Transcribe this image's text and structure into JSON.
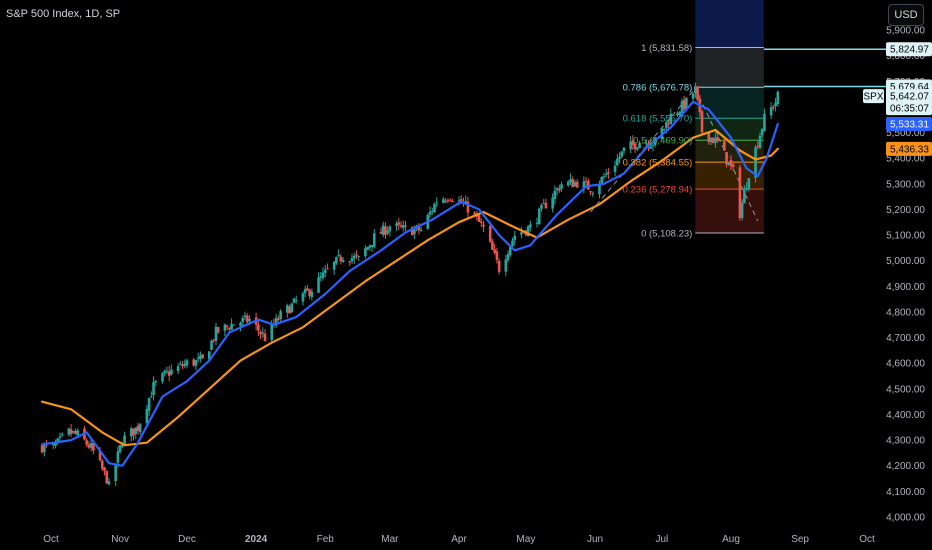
{
  "header": {
    "title": "S&P 500 Index, 1D, SP",
    "currency_button": "USD"
  },
  "colors": {
    "up": "#26a69a",
    "down": "#ef5350",
    "ma_fast": "#2962ff",
    "ma_slow": "#f7931a",
    "fib_zone_top": "#0b1a4a",
    "fib_cyan": "#7fdbe4",
    "label_bg_white": "#dff3f6",
    "sma_blue": "#2962ff",
    "sma_orange": "#f7931a"
  },
  "chart_data": {
    "type": "candlestick",
    "title": "S&P 500 Index, 1D, SP",
    "ylim": [
      3960,
      5980
    ],
    "y_ticks": [
      "5,900.00",
      "5,800.00",
      "5,700.00",
      "5,600.00",
      "5,500.00",
      "5,400.00",
      "5,300.00",
      "5,200.00",
      "5,100.00",
      "5,000.00",
      "4,900.00",
      "4,800.00",
      "4,700.00",
      "4,600.00",
      "4,500.00",
      "4,400.00",
      "4,300.00",
      "4,200.00",
      "4,100.00",
      "4,000.00"
    ],
    "x_labels": [
      "Oct",
      "Nov",
      "Dec",
      "2024",
      "Feb",
      "Mar",
      "Apr",
      "May",
      "Jun",
      "Jul",
      "Aug",
      "Sep",
      "Oct"
    ],
    "close_series": [
      {
        "d": "2023-09-27",
        "v": 4275
      },
      {
        "d": "2023-10-02",
        "v": 4270
      },
      {
        "d": "2023-10-09",
        "v": 4330
      },
      {
        "d": "2023-10-13",
        "v": 4320
      },
      {
        "d": "2023-10-19",
        "v": 4270
      },
      {
        "d": "2023-10-26",
        "v": 4150
      },
      {
        "d": "2023-10-27",
        "v": 4117
      },
      {
        "d": "2023-11-02",
        "v": 4300
      },
      {
        "d": "2023-11-09",
        "v": 4350
      },
      {
        "d": "2023-11-16",
        "v": 4510
      },
      {
        "d": "2023-11-22",
        "v": 4560
      },
      {
        "d": "2023-12-01",
        "v": 4600
      },
      {
        "d": "2023-12-08",
        "v": 4610
      },
      {
        "d": "2023-12-14",
        "v": 4720
      },
      {
        "d": "2023-12-22",
        "v": 4755
      },
      {
        "d": "2023-12-29",
        "v": 4770
      },
      {
        "d": "2024-01-05",
        "v": 4700
      },
      {
        "d": "2024-01-12",
        "v": 4785
      },
      {
        "d": "2024-01-19",
        "v": 4840
      },
      {
        "d": "2024-01-26",
        "v": 4890
      },
      {
        "d": "2024-02-02",
        "v": 4960
      },
      {
        "d": "2024-02-09",
        "v": 5020
      },
      {
        "d": "2024-02-16",
        "v": 5005
      },
      {
        "d": "2024-02-23",
        "v": 5090
      },
      {
        "d": "2024-03-01",
        "v": 5135
      },
      {
        "d": "2024-03-08",
        "v": 5120
      },
      {
        "d": "2024-03-15",
        "v": 5120
      },
      {
        "d": "2024-03-22",
        "v": 5235
      },
      {
        "d": "2024-03-28",
        "v": 5255
      },
      {
        "d": "2024-04-05",
        "v": 5205
      },
      {
        "d": "2024-04-12",
        "v": 5125
      },
      {
        "d": "2024-04-19",
        "v": 4970
      },
      {
        "d": "2024-04-26",
        "v": 5100
      },
      {
        "d": "2024-05-03",
        "v": 5130
      },
      {
        "d": "2024-05-10",
        "v": 5222
      },
      {
        "d": "2024-05-17",
        "v": 5300
      },
      {
        "d": "2024-05-24",
        "v": 5305
      },
      {
        "d": "2024-05-31",
        "v": 5280
      },
      {
        "d": "2024-06-07",
        "v": 5346
      },
      {
        "d": "2024-06-14",
        "v": 5430
      },
      {
        "d": "2024-06-21",
        "v": 5465
      },
      {
        "d": "2024-06-28",
        "v": 5460
      },
      {
        "d": "2024-07-05",
        "v": 5565
      },
      {
        "d": "2024-07-12",
        "v": 5615
      },
      {
        "d": "2024-07-16",
        "v": 5667
      },
      {
        "d": "2024-07-19",
        "v": 5505
      },
      {
        "d": "2024-07-26",
        "v": 5460
      },
      {
        "d": "2024-08-02",
        "v": 5346
      },
      {
        "d": "2024-08-05",
        "v": 5186
      },
      {
        "d": "2024-08-09",
        "v": 5344
      },
      {
        "d": "2024-08-16",
        "v": 5554
      },
      {
        "d": "2024-08-21",
        "v": 5621
      },
      {
        "d": "2024-08-22",
        "v": 5642
      }
    ],
    "ma_fast": [
      {
        "d": "2023-09-27",
        "v": 4283
      },
      {
        "d": "2023-10-10",
        "v": 4300
      },
      {
        "d": "2023-10-17",
        "v": 4330
      },
      {
        "d": "2023-10-27",
        "v": 4210
      },
      {
        "d": "2023-11-02",
        "v": 4200
      },
      {
        "d": "2023-11-09",
        "v": 4290
      },
      {
        "d": "2023-11-20",
        "v": 4470
      },
      {
        "d": "2023-12-01",
        "v": 4530
      },
      {
        "d": "2023-12-11",
        "v": 4610
      },
      {
        "d": "2023-12-20",
        "v": 4720
      },
      {
        "d": "2024-01-02",
        "v": 4770
      },
      {
        "d": "2024-01-09",
        "v": 4750
      },
      {
        "d": "2024-01-19",
        "v": 4780
      },
      {
        "d": "2024-02-01",
        "v": 4870
      },
      {
        "d": "2024-02-12",
        "v": 4960
      },
      {
        "d": "2024-02-26",
        "v": 5040
      },
      {
        "d": "2024-03-08",
        "v": 5110
      },
      {
        "d": "2024-03-20",
        "v": 5160
      },
      {
        "d": "2024-04-02",
        "v": 5230
      },
      {
        "d": "2024-04-10",
        "v": 5200
      },
      {
        "d": "2024-04-19",
        "v": 5100
      },
      {
        "d": "2024-04-26",
        "v": 5040
      },
      {
        "d": "2024-05-03",
        "v": 5060
      },
      {
        "d": "2024-05-15",
        "v": 5180
      },
      {
        "d": "2024-05-28",
        "v": 5290
      },
      {
        "d": "2024-06-05",
        "v": 5300
      },
      {
        "d": "2024-06-14",
        "v": 5340
      },
      {
        "d": "2024-06-24",
        "v": 5440
      },
      {
        "d": "2024-07-05",
        "v": 5520
      },
      {
        "d": "2024-07-15",
        "v": 5620
      },
      {
        "d": "2024-07-22",
        "v": 5590
      },
      {
        "d": "2024-08-01",
        "v": 5480
      },
      {
        "d": "2024-08-08",
        "v": 5360
      },
      {
        "d": "2024-08-13",
        "v": 5330
      },
      {
        "d": "2024-08-17",
        "v": 5400
      },
      {
        "d": "2024-08-22",
        "v": 5533.31
      }
    ],
    "ma_slow": [
      {
        "d": "2023-09-27",
        "v": 4450
      },
      {
        "d": "2023-10-10",
        "v": 4420
      },
      {
        "d": "2023-10-24",
        "v": 4330
      },
      {
        "d": "2023-11-03",
        "v": 4280
      },
      {
        "d": "2023-11-13",
        "v": 4290
      },
      {
        "d": "2023-11-27",
        "v": 4390
      },
      {
        "d": "2023-12-11",
        "v": 4500
      },
      {
        "d": "2023-12-25",
        "v": 4610
      },
      {
        "d": "2024-01-08",
        "v": 4680
      },
      {
        "d": "2024-01-22",
        "v": 4740
      },
      {
        "d": "2024-02-05",
        "v": 4830
      },
      {
        "d": "2024-02-19",
        "v": 4920
      },
      {
        "d": "2024-03-04",
        "v": 5000
      },
      {
        "d": "2024-03-18",
        "v": 5080
      },
      {
        "d": "2024-04-01",
        "v": 5150
      },
      {
        "d": "2024-04-12",
        "v": 5190
      },
      {
        "d": "2024-04-26",
        "v": 5130
      },
      {
        "d": "2024-05-06",
        "v": 5090
      },
      {
        "d": "2024-05-20",
        "v": 5160
      },
      {
        "d": "2024-06-03",
        "v": 5220
      },
      {
        "d": "2024-06-17",
        "v": 5310
      },
      {
        "d": "2024-07-01",
        "v": 5390
      },
      {
        "d": "2024-07-15",
        "v": 5480
      },
      {
        "d": "2024-07-25",
        "v": 5510
      },
      {
        "d": "2024-08-05",
        "v": 5430
      },
      {
        "d": "2024-08-12",
        "v": 5395
      },
      {
        "d": "2024-08-19",
        "v": 5410
      },
      {
        "d": "2024-08-22",
        "v": 5436.33
      }
    ],
    "fibonacci": {
      "start_date": "2024-07-16",
      "end_date": "2024-08-22",
      "levels": [
        {
          "ratio": "1",
          "price": "5,831.58",
          "value": 5831.58,
          "color": "#b2b5be",
          "text": "1 (5,831.58)"
        },
        {
          "ratio": "0.786",
          "price": "5,676.78",
          "value": 5676.78,
          "color": "#7fdbe4",
          "text": "0.786 (5,676.78)"
        },
        {
          "ratio": "0.618",
          "price": "5,555.70",
          "value": 5555.7,
          "color": "#26a69a",
          "text": "0.618 (5,555.70)"
        },
        {
          "ratio": "0.5",
          "price": "5,469.90",
          "value": 5469.9,
          "color": "#4caf50",
          "text": "0.5 (5,469.90)"
        },
        {
          "ratio": "0.382",
          "price": "5,384.55",
          "value": 5384.55,
          "color": "#ff9800",
          "text": "0.382 (5,384.55)"
        },
        {
          "ratio": "0.236",
          "price": "5,278.94",
          "value": 5278.94,
          "color": "#f44336",
          "text": "0.236 (5,278.94)"
        },
        {
          "ratio": "0",
          "price": "5,108.23",
          "value": 5108.23,
          "color": "#b2b5be",
          "text": "0 (5,108.23)"
        }
      ]
    },
    "price_badges": [
      {
        "value": 5824.97,
        "text": "5,824.97",
        "bg": "#dff3f6",
        "fg": "#000000",
        "line": true
      },
      {
        "value": 5679.64,
        "text": "5,679.64",
        "bg": "#dff3f6",
        "fg": "#000000",
        "line": true
      },
      {
        "value": 5642.07,
        "text": "5,642.07",
        "sub": "06:35:07",
        "bg": "#dff3f6",
        "fg": "#000000",
        "line": false,
        "symbol": "SPX"
      },
      {
        "value": 5533.31,
        "text": "5,533.31",
        "bg": "#2962ff",
        "fg": "#ffffff",
        "line": false
      },
      {
        "value": 5436.33,
        "text": "5,436.33",
        "bg": "#f7931a",
        "fg": "#000000",
        "line": false
      }
    ]
  }
}
